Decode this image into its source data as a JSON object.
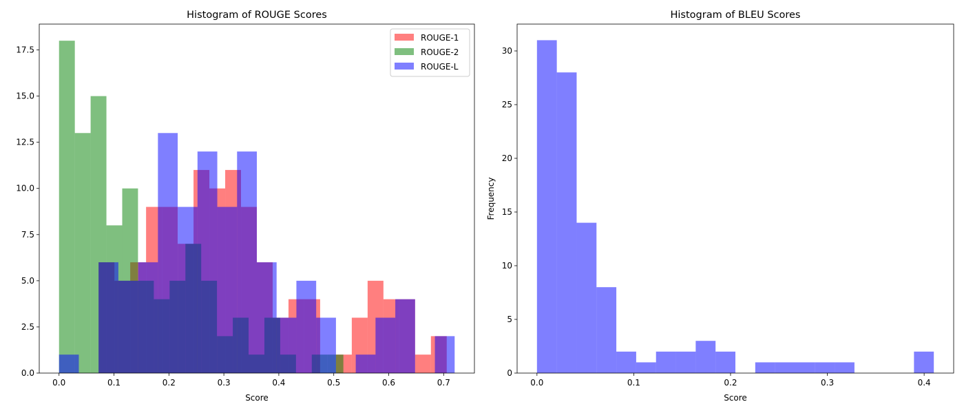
{
  "chart_data": [
    {
      "type": "histogram",
      "title": "Histogram of ROUGE Scores",
      "xlabel": "Score",
      "ylabel": "",
      "xlim": [
        -0.036,
        0.756
      ],
      "ylim": [
        0,
        18.9
      ],
      "xticks": [
        0.0,
        0.1,
        0.2,
        0.3,
        0.4,
        0.5,
        0.6,
        0.7
      ],
      "xtick_labels": [
        "0.0",
        "0.1",
        "0.2",
        "0.3",
        "0.4",
        "0.5",
        "0.6",
        "0.7"
      ],
      "yticks": [
        0,
        2.5,
        5,
        7.5,
        10,
        12.5,
        15,
        17.5
      ],
      "ytick_labels": [
        "0.0",
        "2.5",
        "5.0",
        "7.5",
        "10.0",
        "12.5",
        "15.0",
        "17.5"
      ],
      "grid": false,
      "legend": "upper right",
      "alpha": 0.5,
      "series": [
        {
          "name": "ROUGE-1",
          "color": "#ff0000",
          "bin_edges": [
            0.072,
            0.1008,
            0.1296,
            0.1584,
            0.1872,
            0.216,
            0.2448,
            0.2736,
            0.3024,
            0.3312,
            0.36,
            0.3888,
            0.4176,
            0.4464,
            0.4752,
            0.504,
            0.5328,
            0.5616,
            0.5904,
            0.6192,
            0.648,
            0.6768,
            0.7056
          ],
          "counts": [
            6,
            5,
            6,
            9,
            9,
            7,
            11,
            10,
            11,
            9,
            6,
            3,
            4,
            4,
            0,
            1,
            3,
            5,
            4,
            4,
            1,
            2
          ]
        },
        {
          "name": "ROUGE-2",
          "color": "#008000",
          "bin_edges": [
            0.0,
            0.02875,
            0.0575,
            0.08625,
            0.115,
            0.14375,
            0.1725,
            0.20125,
            0.23,
            0.25875,
            0.2875,
            0.31625,
            0.345,
            0.37375,
            0.4025,
            0.43125,
            0.46,
            0.48875,
            0.5175
          ],
          "counts": [
            18,
            13,
            15,
            8,
            10,
            5,
            4,
            5,
            7,
            5,
            2,
            3,
            1,
            3,
            1,
            0,
            1,
            1
          ]
        },
        {
          "name": "ROUGE-L",
          "color": "#0000ff",
          "bin_edges": [
            0.0,
            0.036,
            0.072,
            0.108,
            0.144,
            0.18,
            0.216,
            0.252,
            0.288,
            0.324,
            0.36,
            0.396,
            0.432,
            0.468,
            0.504,
            0.54,
            0.576,
            0.612,
            0.648,
            0.684,
            0.72
          ],
          "counts": [
            1,
            0,
            6,
            5,
            6,
            13,
            9,
            12,
            9,
            12,
            6,
            3,
            5,
            3,
            0,
            1,
            3,
            4,
            0,
            2
          ]
        }
      ]
    },
    {
      "type": "histogram",
      "title": "Histogram of BLEU Scores",
      "xlabel": "Score",
      "ylabel": "Frequency",
      "xlim": [
        -0.0205,
        0.4305
      ],
      "ylim": [
        0,
        32.5
      ],
      "xticks": [
        0.0,
        0.1,
        0.2,
        0.3,
        0.4
      ],
      "xtick_labels": [
        "0.0",
        "0.1",
        "0.2",
        "0.3",
        "0.4"
      ],
      "yticks": [
        0,
        5,
        10,
        15,
        20,
        25,
        30
      ],
      "ytick_labels": [
        "0",
        "5",
        "10",
        "15",
        "20",
        "25",
        "30"
      ],
      "grid": false,
      "alpha": 0.5,
      "series": [
        {
          "name": "",
          "color": "#0000ff",
          "bin_edges": [
            0.0,
            0.0205,
            0.041,
            0.0615,
            0.082,
            0.1025,
            0.123,
            0.1435,
            0.164,
            0.1845,
            0.205,
            0.2255,
            0.246,
            0.2665,
            0.287,
            0.3075,
            0.328,
            0.3485,
            0.369,
            0.3895,
            0.41
          ],
          "counts": [
            31,
            28,
            14,
            8,
            2,
            1,
            2,
            2,
            3,
            2,
            0,
            1,
            1,
            1,
            1,
            1,
            0,
            0,
            0,
            2
          ]
        }
      ]
    }
  ]
}
